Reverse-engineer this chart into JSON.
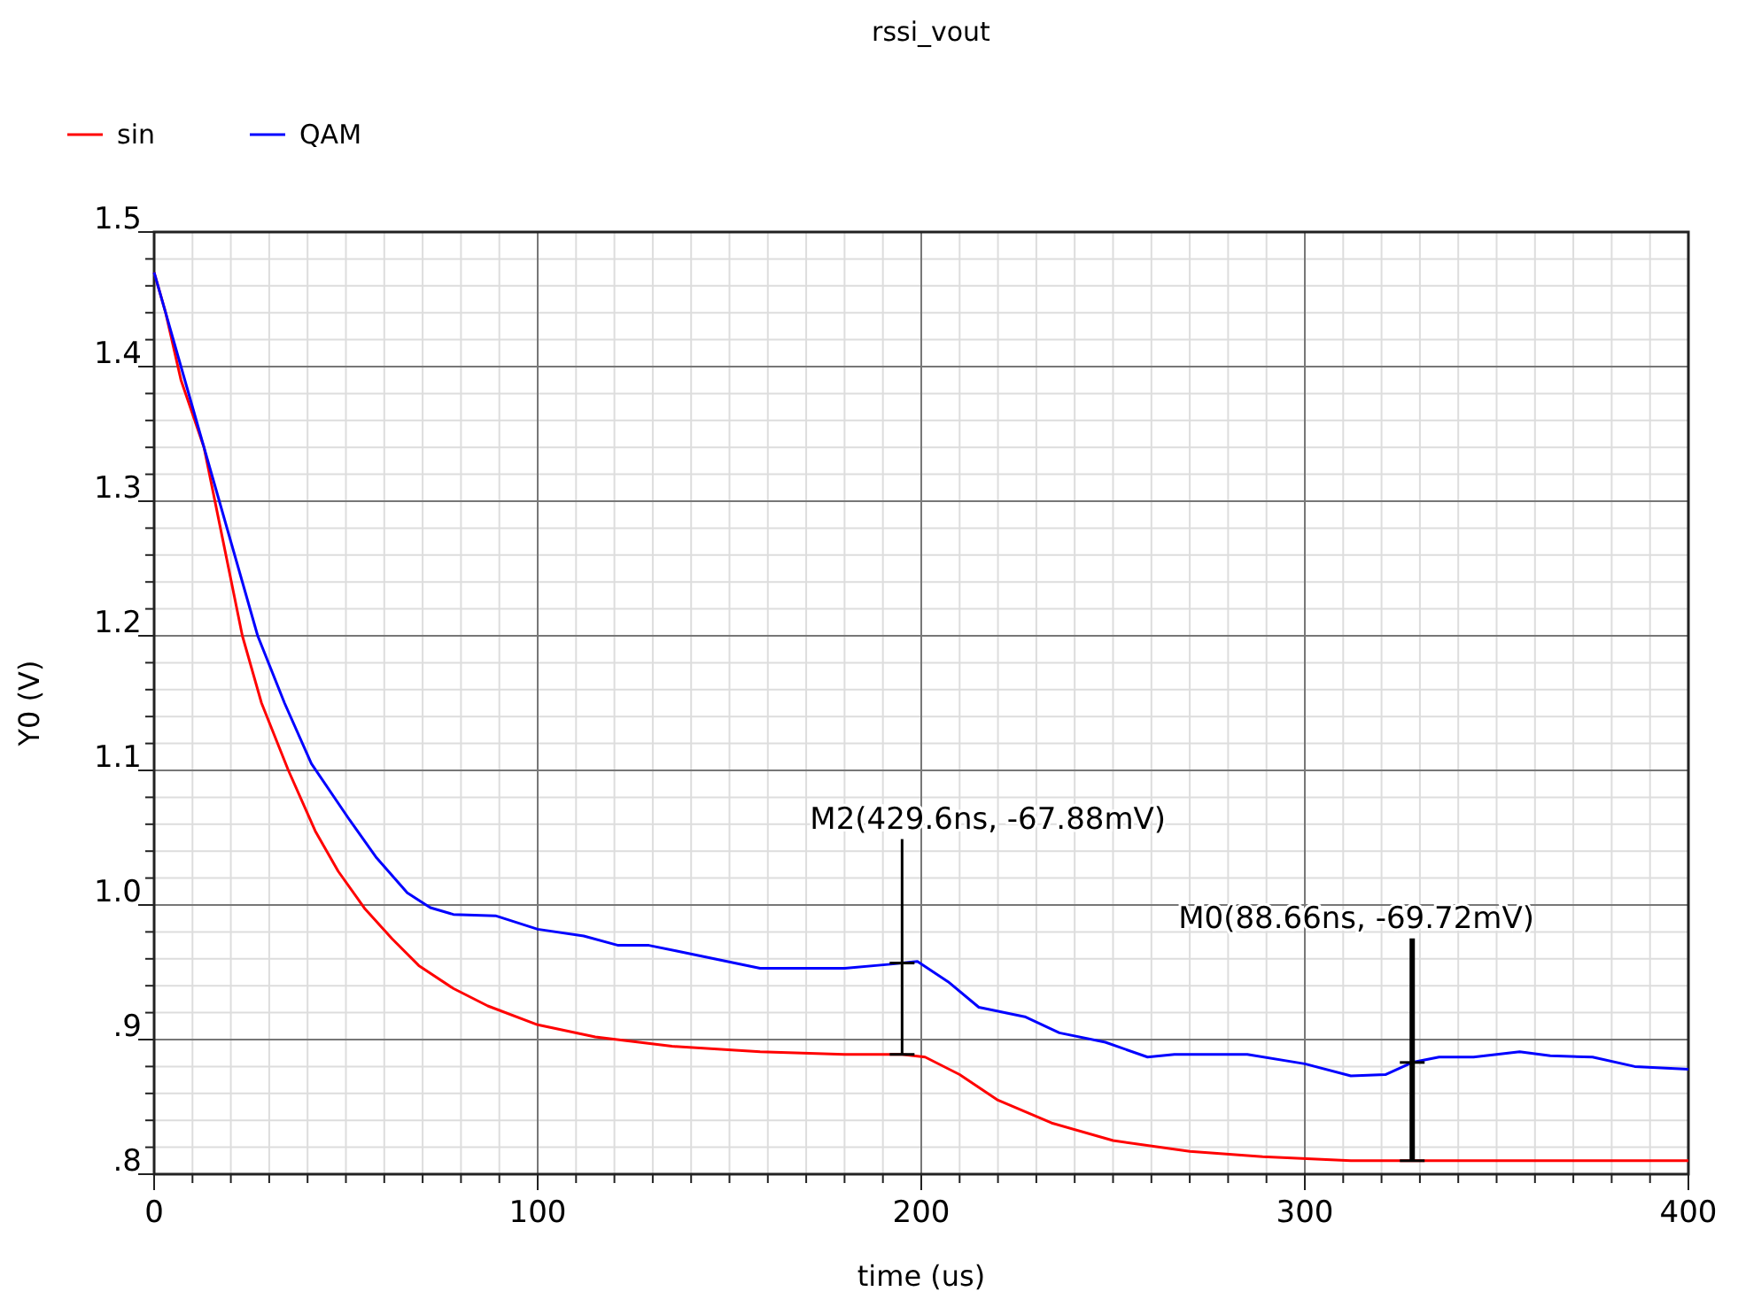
{
  "chart_data": {
    "type": "line",
    "title": "rssi_vout",
    "xlabel": "time (us)",
    "ylabel": "Y0 (V)",
    "xlim": [
      0,
      400
    ],
    "xticks": [
      0,
      100,
      200,
      300,
      400
    ],
    "ylim": [
      0.8,
      1.5
    ],
    "yticks": [
      {
        "value": 0.8,
        "label": ".8"
      },
      {
        "value": 0.9,
        "label": ".9"
      },
      {
        "value": 1.0,
        "label": "1.0"
      },
      1.1,
      1.2,
      1.3,
      1.4,
      1.5
    ],
    "grid": true,
    "legend": "top left",
    "line_style": "solid",
    "series": [
      {
        "name": "sin",
        "color": "#ff0000",
        "x": [
          0,
          3,
          7,
          13,
          18,
          23,
          28,
          35,
          42,
          48,
          55,
          62,
          69,
          78,
          87,
          100,
          115,
          135,
          158,
          180,
          195,
          201,
          210,
          220,
          234,
          250,
          270,
          289,
          312,
          340,
          370,
          400
        ],
        "values": [
          1.47,
          1.44,
          1.39,
          1.34,
          1.27,
          1.2,
          1.15,
          1.1,
          1.055,
          1.025,
          0.997,
          0.975,
          0.955,
          0.938,
          0.925,
          0.911,
          0.902,
          0.895,
          0.891,
          0.889,
          0.889,
          0.887,
          0.874,
          0.855,
          0.838,
          0.825,
          0.817,
          0.813,
          0.81,
          0.81,
          0.81,
          0.81
        ]
      },
      {
        "name": "QAM",
        "color": "#0000ff",
        "x": [
          0,
          3,
          7,
          12,
          17,
          22,
          27,
          34,
          41,
          51,
          58,
          66,
          72,
          78,
          89,
          100,
          112,
          121,
          129,
          136,
          158,
          180,
          192,
          199,
          207,
          215,
          227,
          236,
          248,
          259,
          266,
          285,
          300,
          312,
          321,
          328,
          335,
          344,
          356,
          364,
          375,
          386,
          400
        ],
        "values": [
          1.47,
          1.44,
          1.4,
          1.35,
          1.3,
          1.25,
          1.2,
          1.15,
          1.105,
          1.063,
          1.035,
          1.009,
          0.998,
          0.993,
          0.992,
          0.982,
          0.977,
          0.97,
          0.97,
          0.966,
          0.953,
          0.953,
          0.956,
          0.958,
          0.943,
          0.924,
          0.917,
          0.905,
          0.898,
          0.887,
          0.889,
          0.889,
          0.882,
          0.873,
          0.874,
          0.883,
          0.887,
          0.887,
          0.891,
          0.888,
          0.887,
          0.88,
          0.878
        ]
      }
    ],
    "annotations": [
      {
        "text": "M2(429.6ns, -67.88mV)",
        "x": 195,
        "y": 0.889
      },
      {
        "text": "M0(88.66ns, -69.72mV)",
        "x": 328,
        "y": 0.81
      }
    ]
  }
}
